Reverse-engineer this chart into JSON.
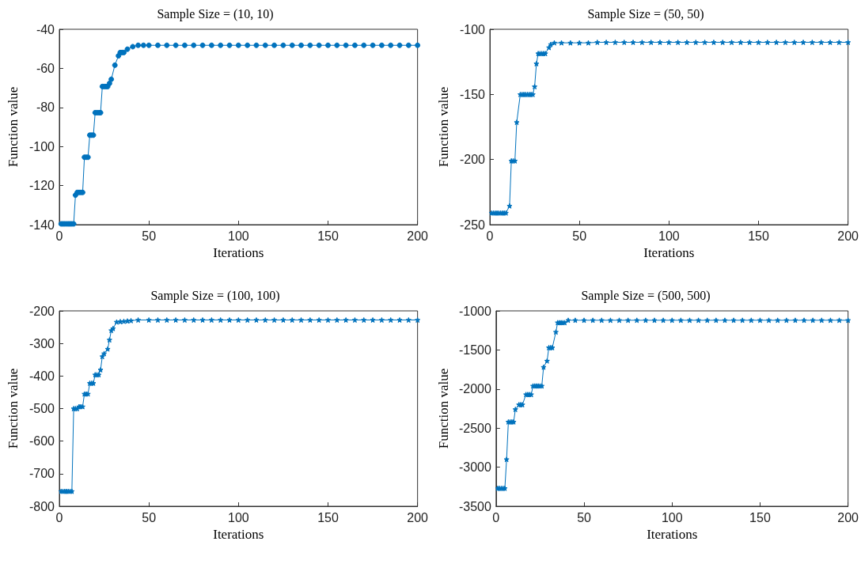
{
  "chart_data": [
    {
      "type": "line",
      "title": "Sample Size = (10, 10)",
      "xlabel": "Iterations",
      "ylabel": "Function value",
      "marker": "circle",
      "grid": false,
      "xlim": [
        0,
        200
      ],
      "xticks": [
        0,
        50,
        100,
        150,
        200
      ],
      "ylim": [
        -140,
        -40
      ],
      "yticks": [
        -140,
        -120,
        -100,
        -80,
        -60,
        -40
      ],
      "series": [
        {
          "color": "#0072bd",
          "x": [
            1,
            2,
            3,
            4,
            5,
            6,
            7,
            8,
            9,
            10,
            11,
            12,
            13,
            14,
            15,
            16,
            17,
            18,
            19,
            20,
            21,
            22,
            23,
            24,
            25,
            26,
            27,
            28,
            29,
            31,
            33,
            34,
            35,
            36,
            38,
            41,
            44,
            47,
            50,
            55,
            60,
            65,
            70,
            75,
            80,
            85,
            90,
            95,
            100,
            105,
            110,
            115,
            120,
            125,
            130,
            135,
            140,
            145,
            150,
            155,
            160,
            165,
            170,
            175,
            180,
            185,
            190,
            195,
            200
          ],
          "values": [
            -139.6,
            -139.6,
            -139.6,
            -139.6,
            -139.6,
            -139.6,
            -139.6,
            -139.6,
            -124.9,
            -123.5,
            -123.5,
            -123.5,
            -123.5,
            -105.5,
            -105.5,
            -105.5,
            -94.2,
            -94.2,
            -94.2,
            -82.7,
            -82.7,
            -82.7,
            -82.7,
            -69.3,
            -69.3,
            -69.3,
            -69.3,
            -67.7,
            -65.6,
            -58.4,
            -53.6,
            -51.9,
            -51.9,
            -51.9,
            -50.2,
            -48.9,
            -48.2,
            -48.2,
            -48.2,
            -48.2,
            -48.2,
            -48.2,
            -48.2,
            -48.2,
            -48.2,
            -48.2,
            -48.2,
            -48.2,
            -48.2,
            -48.2,
            -48.2,
            -48.2,
            -48.2,
            -48.2,
            -48.2,
            -48.2,
            -48.2,
            -48.2,
            -48.2,
            -48.2,
            -48.2,
            -48.2,
            -48.2,
            -48.2,
            -48.2,
            -48.2,
            -48.2,
            -48.2,
            -48.2
          ]
        }
      ]
    },
    {
      "type": "line",
      "title": "Sample Size = (50, 50)",
      "xlabel": "Iterations",
      "ylabel": "Function value",
      "marker": "star",
      "grid": false,
      "xlim": [
        0,
        200
      ],
      "xticks": [
        0,
        50,
        100,
        150,
        200
      ],
      "ylim": [
        -250,
        -100
      ],
      "yticks": [
        -250,
        -200,
        -150,
        -100
      ],
      "series": [
        {
          "color": "#0072bd",
          "x": [
            1,
            2,
            3,
            4,
            5,
            6,
            7,
            8,
            9,
            11,
            12,
            13,
            14,
            15,
            17,
            18,
            19,
            20,
            21,
            22,
            23,
            24,
            25,
            26,
            27,
            28,
            29,
            30,
            31,
            33,
            34,
            36,
            40,
            45,
            50,
            55,
            60,
            65,
            70,
            75,
            80,
            85,
            90,
            95,
            100,
            105,
            110,
            115,
            120,
            125,
            130,
            135,
            140,
            145,
            150,
            155,
            160,
            165,
            170,
            175,
            180,
            185,
            190,
            195,
            200
          ],
          "values": [
            -241,
            -241,
            -241,
            -241,
            -241,
            -241,
            -241,
            -241,
            -241,
            -235.6,
            -201,
            -201,
            -201,
            -171.4,
            -150,
            -150,
            -150,
            -150,
            -150,
            -150,
            -150,
            -150,
            -144,
            -126.4,
            -118.6,
            -118.6,
            -118.6,
            -118.6,
            -118.6,
            -114,
            -111.6,
            -110.4,
            -110.4,
            -110.4,
            -110.4,
            -110.4,
            -110,
            -110,
            -110,
            -110,
            -110,
            -110,
            -110,
            -110,
            -110,
            -110,
            -110,
            -110,
            -110,
            -110,
            -110,
            -110,
            -110,
            -110,
            -110,
            -110,
            -110,
            -110,
            -110,
            -110,
            -110,
            -110,
            -110,
            -110,
            -110
          ]
        }
      ]
    },
    {
      "type": "line",
      "title": "Sample Size = (100, 100)",
      "xlabel": "Iterations",
      "ylabel": "Function value",
      "marker": "star",
      "grid": false,
      "xlim": [
        0,
        200
      ],
      "xticks": [
        0,
        50,
        100,
        150,
        200
      ],
      "ylim": [
        -800,
        -200
      ],
      "yticks": [
        -800,
        -700,
        -600,
        -500,
        -400,
        -300,
        -200
      ],
      "series": [
        {
          "color": "#0072bd",
          "x": [
            1,
            2,
            3,
            4,
            5,
            6,
            7,
            8,
            9,
            10,
            11,
            12,
            13,
            14,
            15,
            16,
            17,
            18,
            19,
            20,
            21,
            22,
            23,
            24,
            25,
            27,
            28,
            29,
            30,
            32,
            34,
            36,
            38,
            40,
            44,
            50,
            55,
            60,
            65,
            70,
            75,
            80,
            85,
            90,
            95,
            100,
            105,
            110,
            115,
            120,
            125,
            130,
            135,
            140,
            145,
            150,
            155,
            160,
            165,
            170,
            175,
            180,
            185,
            190,
            195,
            200
          ],
          "values": [
            -754,
            -754,
            -754,
            -754,
            -754,
            -754,
            -754,
            -500,
            -500,
            -500,
            -494,
            -494,
            -494,
            -455,
            -455,
            -455,
            -422,
            -422,
            -422,
            -396,
            -396,
            -396,
            -381,
            -340,
            -331,
            -317,
            -289,
            -260,
            -254,
            -234,
            -233,
            -232,
            -231,
            -230,
            -228,
            -228,
            -228,
            -228,
            -228,
            -228,
            -228,
            -228,
            -228,
            -228,
            -228,
            -228,
            -228,
            -228,
            -228,
            -228,
            -228,
            -228,
            -228,
            -228,
            -228,
            -228,
            -228,
            -228,
            -228,
            -228,
            -228,
            -228,
            -228,
            -228,
            -228,
            -228
          ]
        }
      ]
    },
    {
      "type": "line",
      "title": "Sample Size = (500, 500)",
      "xlabel": "Iterations",
      "ylabel": "Function value",
      "marker": "star",
      "grid": false,
      "xlim": [
        0,
        200
      ],
      "xticks": [
        0,
        50,
        100,
        150,
        200
      ],
      "ylim": [
        -3500,
        -1000
      ],
      "yticks": [
        -3500,
        -3000,
        -2500,
        -2000,
        -1500,
        -1000
      ],
      "series": [
        {
          "color": "#0072bd",
          "x": [
            1,
            2,
            3,
            4,
            5,
            6,
            7,
            8,
            9,
            10,
            11,
            13,
            14,
            15,
            17,
            18,
            19,
            20,
            21,
            22,
            23,
            24,
            25,
            26,
            27,
            29,
            30,
            31,
            32,
            34,
            35,
            36,
            37,
            38,
            39,
            41,
            45,
            50,
            55,
            60,
            65,
            70,
            75,
            80,
            85,
            90,
            95,
            100,
            105,
            110,
            115,
            120,
            125,
            130,
            135,
            140,
            145,
            150,
            155,
            160,
            165,
            170,
            175,
            180,
            185,
            190,
            195,
            200
          ],
          "values": [
            -3270,
            -3270,
            -3270,
            -3270,
            -3270,
            -2900,
            -2420,
            -2420,
            -2420,
            -2420,
            -2260,
            -2200,
            -2200,
            -2200,
            -2070,
            -2070,
            -2070,
            -2070,
            -1960,
            -1960,
            -1960,
            -1960,
            -1960,
            -1960,
            -1720,
            -1640,
            -1470,
            -1470,
            -1470,
            -1270,
            -1150,
            -1150,
            -1150,
            -1150,
            -1150,
            -1120,
            -1120,
            -1120,
            -1120,
            -1120,
            -1120,
            -1120,
            -1120,
            -1120,
            -1120,
            -1120,
            -1120,
            -1120,
            -1120,
            -1120,
            -1120,
            -1120,
            -1120,
            -1120,
            -1120,
            -1120,
            -1120,
            -1120,
            -1120,
            -1120,
            -1120,
            -1120,
            -1120,
            -1120,
            -1120,
            -1120,
            -1120,
            -1120
          ]
        }
      ]
    }
  ]
}
